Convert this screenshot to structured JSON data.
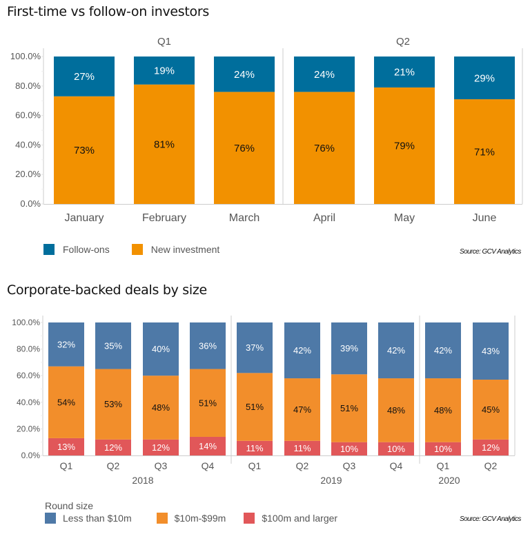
{
  "chart_data": [
    {
      "type": "bar",
      "stacked": true,
      "title": "First-time vs follow-on investors",
      "groups": [
        {
          "label": "Q1",
          "categories": [
            "January",
            "February",
            "March"
          ]
        },
        {
          "label": "Q2",
          "categories": [
            "April",
            "May",
            "June"
          ]
        }
      ],
      "categories": [
        "January",
        "February",
        "March",
        "April",
        "May",
        "June"
      ],
      "series": [
        {
          "name": "New investment",
          "color": "#F29100",
          "label_color": "#111111",
          "values": [
            73,
            81,
            76,
            76,
            79,
            71
          ],
          "labels": [
            "73%",
            "81%",
            "76%",
            "76%",
            "79%",
            "71%"
          ]
        },
        {
          "name": "Follow-ons",
          "color": "#006E9C",
          "label_color": "#ffffff",
          "values": [
            27,
            19,
            24,
            24,
            21,
            29
          ],
          "labels": [
            "27%",
            "19%",
            "24%",
            "24%",
            "21%",
            "29%"
          ]
        }
      ],
      "yticks": [
        "0.0%",
        "20.0%",
        "40.0%",
        "60.0%",
        "80.0%",
        "100.0%"
      ],
      "ylim": [
        0,
        100
      ],
      "xlabel": "",
      "ylabel": "",
      "legend": [
        {
          "name": "Follow-ons",
          "color": "#006E9C"
        },
        {
          "name": "New investment",
          "color": "#F29100"
        }
      ],
      "legend_position": "bottom-left",
      "source": "Source: GCV Analytics"
    },
    {
      "type": "bar",
      "stacked": true,
      "title": "Corporate-backed deals by size",
      "groups": [
        {
          "label": "2018",
          "categories": [
            "Q1",
            "Q2",
            "Q3",
            "Q4"
          ]
        },
        {
          "label": "2019",
          "categories": [
            "Q1",
            "Q2",
            "Q3",
            "Q4"
          ]
        },
        {
          "label": "2020",
          "categories": [
            "Q1",
            "Q2"
          ]
        }
      ],
      "categories": [
        "Q1",
        "Q2",
        "Q3",
        "Q4",
        "Q1",
        "Q2",
        "Q3",
        "Q4",
        "Q1",
        "Q2"
      ],
      "series": [
        {
          "name": "$100m and larger",
          "color": "#E15759",
          "label_color": "#ffffff",
          "values": [
            13,
            12,
            12,
            14,
            11,
            11,
            10,
            10,
            10,
            12
          ],
          "labels": [
            "13%",
            "12%",
            "12%",
            "14%",
            "11%",
            "11%",
            "10%",
            "10%",
            "10%",
            "12%"
          ]
        },
        {
          "name": "$10m-$99m",
          "color": "#F28E2B",
          "label_color": "#111111",
          "values": [
            54,
            53,
            48,
            51,
            51,
            47,
            51,
            48,
            48,
            45
          ],
          "labels": [
            "54%",
            "53%",
            "48%",
            "51%",
            "51%",
            "47%",
            "51%",
            "48%",
            "48%",
            "45%"
          ]
        },
        {
          "name": "Less than $10m",
          "color": "#4E79A7",
          "label_color": "#ffffff",
          "values": [
            32,
            35,
            40,
            36,
            37,
            42,
            39,
            42,
            42,
            43
          ],
          "labels": [
            "32%",
            "35%",
            "40%",
            "36%",
            "37%",
            "42%",
            "39%",
            "42%",
            "42%",
            "43%"
          ]
        }
      ],
      "yticks": [
        "0.0%",
        "20.0%",
        "40.0%",
        "60.0%",
        "80.0%",
        "100.0%"
      ],
      "ylim": [
        0,
        100
      ],
      "xlabel": "",
      "ylabel": "",
      "legend_title": "Round size",
      "legend": [
        {
          "name": "Less than $10m",
          "color": "#4E79A7"
        },
        {
          "name": "$10m-$99m",
          "color": "#F28E2B"
        },
        {
          "name": "$100m and larger",
          "color": "#E15759"
        }
      ],
      "legend_position": "bottom-left",
      "source": "Source: GCV Analytics"
    }
  ]
}
